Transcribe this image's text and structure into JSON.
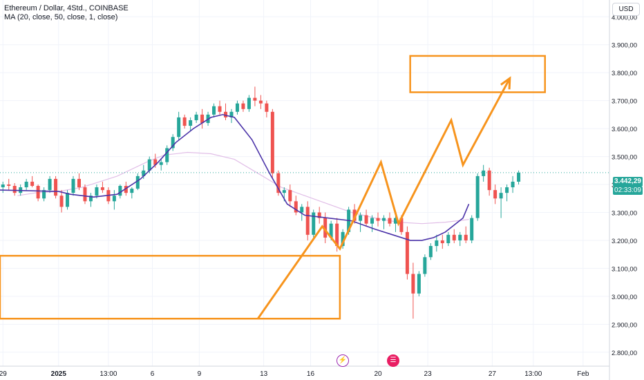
{
  "header": {
    "symbol_line": "Ethereum / Dollar, 4Std., COINBASE",
    "indicator_line": "MA (20, close, 50, close, 1, close)"
  },
  "currency_button": "USD",
  "price_scale": {
    "labels": [
      "4.000,00",
      "3.900,00",
      "3.800,00",
      "3.700,00",
      "3.600,00",
      "3.500,00",
      "3.400,00",
      "3.300,00",
      "3.200,00",
      "3.100,00",
      "3.000,00",
      "2.900,00",
      "2.800,00"
    ],
    "values": [
      4000,
      3900,
      3800,
      3700,
      3600,
      3500,
      3400,
      3300,
      3200,
      3100,
      3000,
      2900,
      2800
    ],
    "last_price": "3.442,29",
    "last_price_value": 3442.29,
    "countdown": "02:33:09"
  },
  "time_axis": {
    "labels": [
      "29",
      "2025",
      "13:00",
      "6",
      "9",
      "13",
      "16",
      "20",
      "23",
      "27",
      "13:00",
      "Feb"
    ],
    "positions": [
      0.5,
      10,
      18.5,
      26,
      34,
      45,
      53,
      64.5,
      73,
      84,
      91,
      99.5
    ]
  },
  "events": {
    "icon1": "lightning-icon",
    "icon2": "us-flag-icon",
    "icon1_glyph": "⚡",
    "icon2_glyph": "☰"
  },
  "colors": {
    "up": "#26a69a",
    "down": "#ef5350",
    "ma20": "#4a32a8",
    "ma50": "#e1bee7",
    "annotation": "#f7941d",
    "last_price_line": "#26a69a"
  },
  "chart_data": {
    "type": "candlestick",
    "title": "Ethereum / Dollar, 4Std., COINBASE",
    "ylim": [
      2750,
      4060
    ],
    "xlim": [
      0,
      104
    ],
    "candles": [
      [
        3390,
        3410,
        3370,
        3400
      ],
      [
        3400,
        3420,
        3380,
        3395
      ],
      [
        3395,
        3405,
        3360,
        3370
      ],
      [
        3370,
        3400,
        3360,
        3390
      ],
      [
        3390,
        3420,
        3380,
        3410
      ],
      [
        3410,
        3430,
        3390,
        3395
      ],
      [
        3395,
        3400,
        3340,
        3350
      ],
      [
        3350,
        3390,
        3340,
        3380
      ],
      [
        3380,
        3430,
        3370,
        3420
      ],
      [
        3420,
        3430,
        3350,
        3360
      ],
      [
        3360,
        3380,
        3300,
        3320
      ],
      [
        3320,
        3380,
        3310,
        3370
      ],
      [
        3370,
        3430,
        3360,
        3420
      ],
      [
        3420,
        3440,
        3380,
        3390
      ],
      [
        3390,
        3400,
        3330,
        3340
      ],
      [
        3340,
        3370,
        3320,
        3360
      ],
      [
        3360,
        3400,
        3350,
        3390
      ],
      [
        3390,
        3410,
        3370,
        3380
      ],
      [
        3380,
        3390,
        3330,
        3340
      ],
      [
        3340,
        3380,
        3310,
        3360
      ],
      [
        3360,
        3400,
        3350,
        3395
      ],
      [
        3395,
        3410,
        3360,
        3370
      ],
      [
        3370,
        3390,
        3350,
        3385
      ],
      [
        3385,
        3440,
        3380,
        3430
      ],
      [
        3430,
        3470,
        3420,
        3450
      ],
      [
        3450,
        3500,
        3440,
        3490
      ],
      [
        3490,
        3510,
        3460,
        3470
      ],
      [
        3470,
        3490,
        3450,
        3480
      ],
      [
        3480,
        3540,
        3470,
        3530
      ],
      [
        3530,
        3580,
        3520,
        3570
      ],
      [
        3570,
        3660,
        3560,
        3640
      ],
      [
        3640,
        3650,
        3600,
        3610
      ],
      [
        3610,
        3640,
        3590,
        3630
      ],
      [
        3630,
        3660,
        3620,
        3650
      ],
      [
        3650,
        3670,
        3600,
        3620
      ],
      [
        3620,
        3660,
        3610,
        3650
      ],
      [
        3650,
        3690,
        3640,
        3680
      ],
      [
        3680,
        3700,
        3650,
        3660
      ],
      [
        3660,
        3690,
        3630,
        3640
      ],
      [
        3640,
        3670,
        3620,
        3660
      ],
      [
        3660,
        3700,
        3650,
        3690
      ],
      [
        3690,
        3700,
        3660,
        3670
      ],
      [
        3670,
        3720,
        3660,
        3710
      ],
      [
        3710,
        3750,
        3680,
        3700
      ],
      [
        3700,
        3720,
        3670,
        3690
      ],
      [
        3690,
        3700,
        3640,
        3660
      ],
      [
        3660,
        3670,
        3420,
        3440
      ],
      [
        3440,
        3450,
        3360,
        3370
      ],
      [
        3370,
        3390,
        3340,
        3380
      ],
      [
        3380,
        3400,
        3320,
        3340
      ],
      [
        3340,
        3360,
        3290,
        3300
      ],
      [
        3300,
        3330,
        3270,
        3320
      ],
      [
        3320,
        3340,
        3200,
        3220
      ],
      [
        3220,
        3310,
        3210,
        3300
      ],
      [
        3300,
        3320,
        3260,
        3280
      ],
      [
        3280,
        3300,
        3190,
        3210
      ],
      [
        3210,
        3270,
        3200,
        3260
      ],
      [
        3260,
        3280,
        3160,
        3180
      ],
      [
        3180,
        3240,
        3170,
        3230
      ],
      [
        3230,
        3320,
        3220,
        3310
      ],
      [
        3310,
        3330,
        3260,
        3270
      ],
      [
        3270,
        3300,
        3230,
        3290
      ],
      [
        3290,
        3310,
        3250,
        3260
      ],
      [
        3260,
        3290,
        3230,
        3280
      ],
      [
        3280,
        3300,
        3250,
        3270
      ],
      [
        3270,
        3290,
        3240,
        3280
      ],
      [
        3280,
        3300,
        3250,
        3260
      ],
      [
        3260,
        3290,
        3230,
        3280
      ],
      [
        3280,
        3290,
        3220,
        3230
      ],
      [
        3230,
        3250,
        3060,
        3080
      ],
      [
        3080,
        3120,
        2920,
        3010
      ],
      [
        3010,
        3090,
        3000,
        3080
      ],
      [
        3080,
        3150,
        3070,
        3140
      ],
      [
        3140,
        3190,
        3130,
        3180
      ],
      [
        3180,
        3220,
        3160,
        3200
      ],
      [
        3200,
        3220,
        3170,
        3190
      ],
      [
        3190,
        3230,
        3180,
        3220
      ],
      [
        3220,
        3240,
        3190,
        3200
      ],
      [
        3200,
        3230,
        3180,
        3220
      ],
      [
        3220,
        3250,
        3190,
        3200
      ],
      [
        3200,
        3290,
        3190,
        3280
      ],
      [
        3280,
        3440,
        3270,
        3430
      ],
      [
        3430,
        3470,
        3410,
        3450
      ],
      [
        3450,
        3460,
        3360,
        3380
      ],
      [
        3380,
        3400,
        3330,
        3350
      ],
      [
        3350,
        3390,
        3280,
        3370
      ],
      [
        3370,
        3400,
        3340,
        3390
      ],
      [
        3390,
        3430,
        3370,
        3410
      ],
      [
        3410,
        3450,
        3400,
        3442.29
      ]
    ],
    "ma20": [
      [
        0,
        3380
      ],
      [
        10,
        3375
      ],
      [
        12,
        3365
      ],
      [
        16,
        3355
      ],
      [
        20,
        3365
      ],
      [
        24,
        3420
      ],
      [
        27,
        3480
      ],
      [
        30,
        3550
      ],
      [
        33,
        3600
      ],
      [
        36,
        3640
      ],
      [
        38,
        3650
      ],
      [
        40,
        3640
      ],
      [
        43,
        3560
      ],
      [
        46,
        3440
      ],
      [
        49,
        3330
      ],
      [
        52,
        3290
      ],
      [
        56,
        3280
      ],
      [
        60,
        3270
      ],
      [
        64,
        3240
      ],
      [
        67,
        3220
      ],
      [
        70,
        3200
      ],
      [
        72,
        3200
      ],
      [
        74,
        3210
      ],
      [
        76,
        3230
      ],
      [
        79,
        3280
      ],
      [
        80,
        3330
      ]
    ],
    "ma50": [
      [
        3,
        3360
      ],
      [
        6,
        3370
      ],
      [
        10,
        3375
      ],
      [
        14,
        3390
      ],
      [
        20,
        3430
      ],
      [
        25,
        3480
      ],
      [
        28,
        3505
      ],
      [
        32,
        3515
      ],
      [
        36,
        3510
      ],
      [
        40,
        3490
      ],
      [
        44,
        3440
      ],
      [
        48,
        3390
      ],
      [
        52,
        3360
      ],
      [
        56,
        3330
      ],
      [
        60,
        3300
      ],
      [
        64,
        3280
      ],
      [
        68,
        3265
      ],
      [
        72,
        3260
      ],
      [
        76,
        3265
      ],
      [
        80,
        3275
      ]
    ],
    "boxes": [
      {
        "x0": 70,
        "x1": 93,
        "y0": 3730,
        "y1": 3860
      },
      {
        "x0": 0,
        "x1": 58,
        "y0": 2920,
        "y1": 3145
      }
    ],
    "projection_path": [
      [
        44,
        2920
      ],
      [
        55,
        3250
      ],
      [
        58,
        3170
      ],
      [
        65,
        3480
      ],
      [
        68,
        3260
      ],
      [
        77,
        3630
      ],
      [
        79,
        3470
      ],
      [
        87,
        3780
      ]
    ],
    "last_price_line": 3442.29
  }
}
